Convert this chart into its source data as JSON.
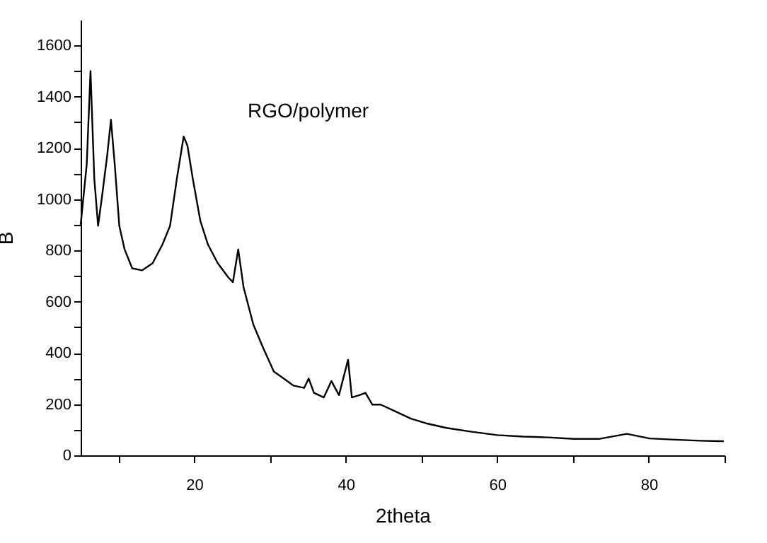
{
  "chart_data": {
    "type": "line",
    "xlabel": "2theta",
    "ylabel": "B",
    "annotations": [
      "RGO/polymer"
    ],
    "x": [
      5,
      5.8,
      6.3,
      6.8,
      7.3,
      7.8,
      8.5,
      9.0,
      9.5,
      10.1,
      10.8,
      11.8,
      13.1,
      14.5,
      15.8,
      16.8,
      17.7,
      18.6,
      19.1,
      19.8,
      20.8,
      21.8,
      23.1,
      24.5,
      25.1,
      25.8,
      26.5,
      27.8,
      29.1,
      30.5,
      31.8,
      33.1,
      34.5,
      35.1,
      35.8,
      37.1,
      38.1,
      39.1,
      40.3,
      40.8,
      41.8,
      42.6,
      43.5,
      44.6,
      46.6,
      48.6,
      50.6,
      53.3,
      56.6,
      60,
      63.4,
      66.7,
      70.1,
      73.4,
      77.1,
      80.1,
      83.5,
      86.8,
      89.9
    ],
    "series": [
      {
        "color": "#000000",
        "values": [
          900,
          1135,
          1500,
          1080,
          896,
          1006,
          1170,
          1310,
          1135,
          896,
          804,
          730,
          722,
          750,
          823,
          896,
          1080,
          1245,
          1208,
          1080,
          915,
          823,
          750,
          694,
          676,
          804,
          657,
          510,
          419,
          327,
          300,
          272,
          263,
          300,
          244,
          226,
          290,
          235,
          373,
          226,
          235,
          244,
          198,
          198,
          171,
          143,
          125,
          107,
          92,
          79,
          73,
          70,
          64,
          64,
          84,
          66,
          61,
          57,
          55
        ]
      }
    ],
    "xlim": [
      5,
      90
    ],
    "xticks": [
      {
        "value": 10,
        "label": null
      },
      20,
      {
        "value": 30,
        "label": null
      },
      40,
      {
        "value": 50,
        "label": null
      },
      60,
      {
        "value": 70,
        "label": null
      },
      80,
      {
        "value": 90,
        "label": null
      }
    ],
    "ylim": [
      0,
      1700
    ],
    "yticks": [
      0,
      {
        "value": 100,
        "label": null
      },
      200,
      {
        "value": 300,
        "label": null
      },
      400,
      {
        "value": 500,
        "label": null
      },
      600,
      {
        "value": 700,
        "label": null
      },
      800,
      {
        "value": 900,
        "label": null
      },
      1000,
      {
        "value": 1100,
        "label": null
      },
      1200,
      {
        "value": 1300,
        "label": null
      },
      1400,
      {
        "value": 1500,
        "label": null
      },
      1600
    ],
    "grid": false,
    "line_style": "solid",
    "marker": "none"
  }
}
